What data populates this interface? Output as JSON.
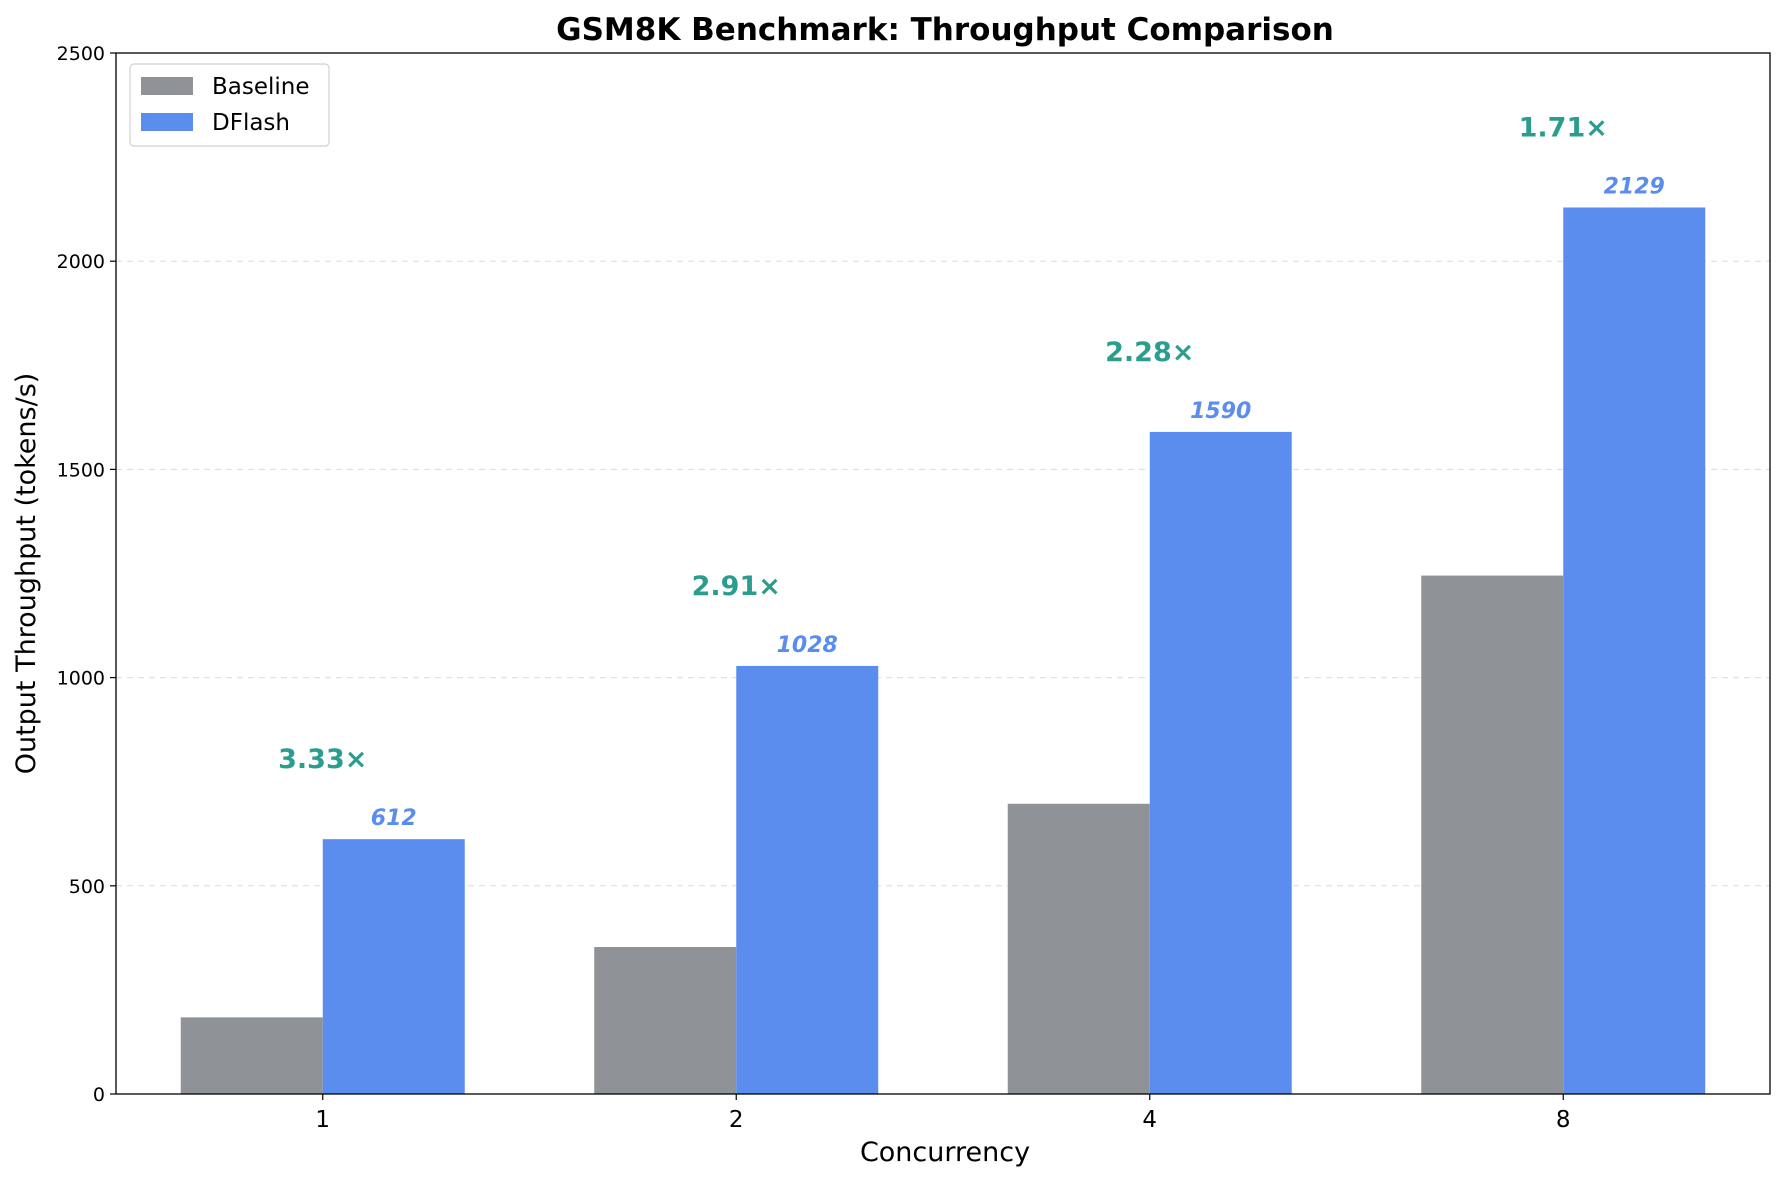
{
  "chart_data": {
    "type": "bar",
    "title": "GSM8K Benchmark: Throughput Comparison",
    "xlabel": "Concurrency",
    "ylabel": "Output Throughput (tokens/s)",
    "categories": [
      "1",
      "2",
      "4",
      "8"
    ],
    "ylim": [
      0,
      2500
    ],
    "yticks": [
      0,
      500,
      1000,
      1500,
      2000,
      2500
    ],
    "grid": "y-dashed",
    "legend_position": "top-left",
    "series": [
      {
        "name": "Baseline",
        "color": "#8f9296",
        "values": [
          184,
          353,
          697,
          1245
        ]
      },
      {
        "name": "DFlash",
        "color": "#5b8def",
        "values": [
          612,
          1028,
          1590,
          2129
        ],
        "data_labels": [
          "612",
          "1028",
          "1590",
          "2129"
        ]
      }
    ],
    "annotations": {
      "color": "#2a9d8f",
      "labels": [
        "3.33×",
        "2.91×",
        "2.28×",
        "1.71×"
      ]
    },
    "value_label_color": "#5b8def"
  }
}
